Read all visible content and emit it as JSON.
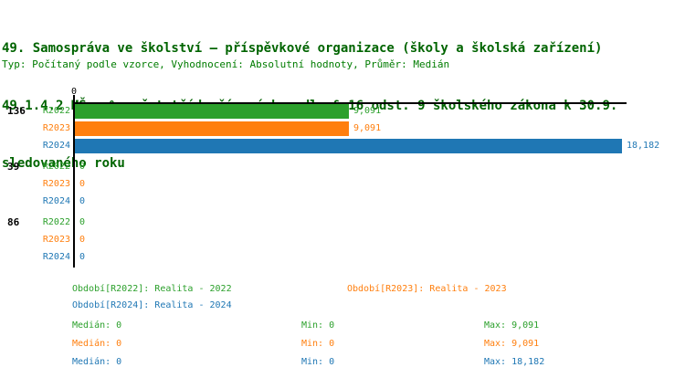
{
  "title": {
    "line1": "49. Samospráva ve školství – příspěvkové organizace (školy a školská zařízení)",
    "line2": "49.1.4.2 MŠ – % počet tříd zřízených podle § 16 odst. 9 školského zákona k 30.9.",
    "line3": "sledovaného roku"
  },
  "meta": "Typ: Počítaný podle vzorce, Vyhodnocení: Absolutní hodnoty, Průměr: Medián",
  "colors": {
    "title_green": "#006400",
    "meta_green": "#007C00",
    "axis_black": "#000000",
    "r2022_green": "#2CA02C",
    "r2023_orange": "#FF7F0E",
    "r2024_blue": "#1F77B4"
  },
  "chart_data": {
    "type": "bar",
    "orientation": "horizontal",
    "title": "49.1.4.2 MŠ – % počet tříd zřízených podle § 16 odst. 9 školského zákona k 30.9. sledovaného roku",
    "value_axis_tick_labels": [
      "0"
    ],
    "tick_label": "0",
    "legend_position": "bottom",
    "grid": false,
    "categories": [
      "136",
      "39",
      "86"
    ],
    "series": [
      {
        "name": "R2022",
        "legend": "Období[R2022]: Realita - 2022",
        "color": "#2CA02C"
      },
      {
        "name": "R2023",
        "legend": "Období[R2023]: Realita - 2023",
        "color": "#FF7F0E"
      },
      {
        "name": "R2024",
        "legend": "Období[R2024]: Realita - 2024",
        "color": "#1F77B4"
      }
    ],
    "groups": [
      {
        "label": "136",
        "rows": [
          {
            "series": "R2022",
            "value": 9.091,
            "value_label": "9,091"
          },
          {
            "series": "R2023",
            "value": 9.091,
            "value_label": "9,091"
          },
          {
            "series": "R2024",
            "value": 18.182,
            "value_label": "18,182"
          }
        ]
      },
      {
        "label": "39",
        "rows": [
          {
            "series": "R2022",
            "value": 0,
            "value_label": "0"
          },
          {
            "series": "R2023",
            "value": 0,
            "value_label": "0"
          },
          {
            "series": "R2024",
            "value": 0,
            "value_label": "0"
          }
        ]
      },
      {
        "label": "86",
        "rows": [
          {
            "series": "R2022",
            "value": 0,
            "value_label": "0"
          },
          {
            "series": "R2023",
            "value": 0,
            "value_label": "0"
          },
          {
            "series": "R2024",
            "value": 0,
            "value_label": "0"
          }
        ]
      }
    ],
    "stats": [
      {
        "series": "R2022",
        "median": "Medián: 0",
        "min": "Min: 0",
        "max": "Max: 9,091"
      },
      {
        "series": "R2023",
        "median": "Medián: 0",
        "min": "Min: 0",
        "max": "Max: 9,091"
      },
      {
        "series": "R2024",
        "median": "Medián: 0",
        "min": "Min: 0",
        "max": "Max: 18,182"
      }
    ]
  }
}
